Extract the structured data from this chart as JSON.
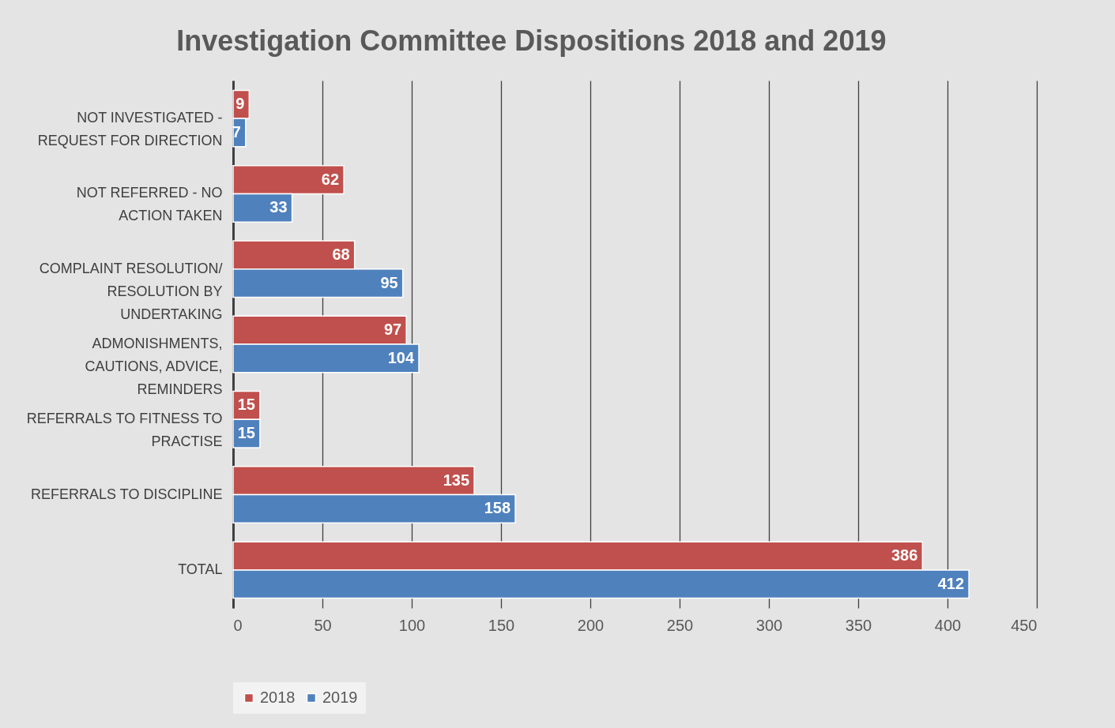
{
  "chart_data": {
    "type": "bar",
    "orientation": "horizontal",
    "title": "Investigation Committee Dispositions 2018 and 2019",
    "categories": [
      "NOT INVESTIGATED - REQUEST FOR DIRECTION",
      "NOT REFERRED - NO ACTION TAKEN",
      "COMPLAINT RESOLUTION/ RESOLUTION BY UNDERTAKING",
      "ADMONISHMENTS, CAUTIONS, ADVICE, REMINDERS",
      "REFERRALS TO FITNESS TO PRACTISE",
      "REFERRALS TO DISCIPLINE",
      "TOTAL"
    ],
    "series": [
      {
        "name": "2018",
        "color": "#c0504d",
        "values": [
          9,
          62,
          68,
          97,
          15,
          135,
          386
        ]
      },
      {
        "name": "2019",
        "color": "#4f81bd",
        "values": [
          7,
          33,
          95,
          104,
          15,
          158,
          412
        ]
      }
    ],
    "xlim": [
      0,
      450
    ],
    "xticks": [
      0,
      50,
      100,
      150,
      200,
      250,
      300,
      350,
      400,
      450
    ],
    "grid": "x",
    "legend": "bottom",
    "data_labels": true
  }
}
